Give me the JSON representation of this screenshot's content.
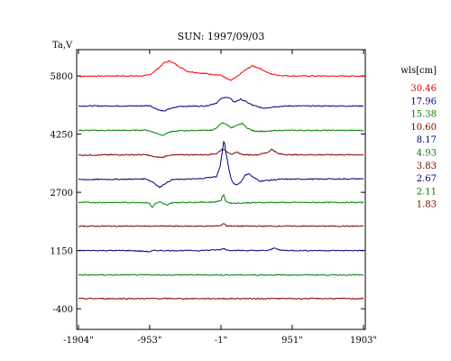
{
  "chart_data": {
    "type": "line",
    "title": "SUN: 1997/09/03",
    "ylabel": "Ta,V",
    "xlabel": "",
    "x_ticks": [
      "-1904\"",
      "-953\"",
      "-1\"",
      "951\"",
      "1903\""
    ],
    "x_tick_values": [
      -1904,
      -953,
      -1,
      951,
      1903
    ],
    "y_ticks": [
      "5800",
      "4250",
      "2700",
      "1150",
      "-400"
    ],
    "y_tick_values": [
      5800,
      4250,
      2700,
      1150,
      -400
    ],
    "xlim": [
      -1904,
      1903
    ],
    "ylim": [
      -950,
      6500
    ],
    "grid": false,
    "legend": {
      "title": "wls[cm]",
      "placement": "right",
      "entries": [
        "30.46",
        "17.96",
        "15.38",
        "10.60",
        "8.17",
        "4.93",
        "3.83",
        "2.67",
        "2.11",
        "1.83"
      ],
      "colors": [
        "#cc0000",
        "#000080",
        "#008000",
        "#800000",
        "#000080",
        "#008000",
        "#800000",
        "#000080",
        "#008000",
        "#800000"
      ]
    },
    "series": [
      {
        "wavelength": "30.46",
        "color": "#ff0000",
        "baseline": 5800,
        "points": [
          [
            -1904,
            5790
          ],
          [
            -1500,
            5800
          ],
          [
            -1050,
            5800
          ],
          [
            -950,
            5830
          ],
          [
            -850,
            5980
          ],
          [
            -760,
            6150
          ],
          [
            -680,
            6200
          ],
          [
            -600,
            6100
          ],
          [
            -450,
            5920
          ],
          [
            -250,
            5870
          ],
          [
            -100,
            5840
          ],
          [
            0,
            5820
          ],
          [
            80,
            5720
          ],
          [
            130,
            5680
          ],
          [
            200,
            5760
          ],
          [
            320,
            5950
          ],
          [
            420,
            6070
          ],
          [
            520,
            6000
          ],
          [
            650,
            5860
          ],
          [
            800,
            5810
          ],
          [
            1000,
            5800
          ],
          [
            1903,
            5795
          ]
        ]
      },
      {
        "wavelength": "17.96",
        "color": "#000080",
        "baseline": 5000,
        "points": [
          [
            -1904,
            5000
          ],
          [
            -1100,
            5000
          ],
          [
            -950,
            5010
          ],
          [
            -850,
            4910
          ],
          [
            -760,
            4860
          ],
          [
            -680,
            4930
          ],
          [
            -550,
            4990
          ],
          [
            -200,
            5000
          ],
          [
            -60,
            5080
          ],
          [
            0,
            5190
          ],
          [
            60,
            5240
          ],
          [
            120,
            5200
          ],
          [
            180,
            5100
          ],
          [
            260,
            5180
          ],
          [
            330,
            5120
          ],
          [
            420,
            5020
          ],
          [
            560,
            4940
          ],
          [
            720,
            4980
          ],
          [
            900,
            5000
          ],
          [
            1903,
            5000
          ]
        ]
      },
      {
        "wavelength": "15.38",
        "color": "#008000",
        "baseline": 4350,
        "points": [
          [
            -1904,
            4350
          ],
          [
            -1200,
            4350
          ],
          [
            -1000,
            4360
          ],
          [
            -900,
            4300
          ],
          [
            -780,
            4220
          ],
          [
            -700,
            4300
          ],
          [
            -560,
            4340
          ],
          [
            -300,
            4350
          ],
          [
            -100,
            4360
          ],
          [
            -30,
            4470
          ],
          [
            20,
            4560
          ],
          [
            80,
            4500
          ],
          [
            140,
            4420
          ],
          [
            220,
            4480
          ],
          [
            280,
            4540
          ],
          [
            340,
            4430
          ],
          [
            420,
            4340
          ],
          [
            600,
            4320
          ],
          [
            760,
            4350
          ],
          [
            1903,
            4350
          ]
        ]
      },
      {
        "wavelength": "10.60",
        "color": "#800000",
        "baseline": 3700,
        "points": [
          [
            -1904,
            3690
          ],
          [
            -1400,
            3700
          ],
          [
            -1000,
            3700
          ],
          [
            -880,
            3640
          ],
          [
            -780,
            3630
          ],
          [
            -700,
            3690
          ],
          [
            -500,
            3700
          ],
          [
            -200,
            3700
          ],
          [
            -60,
            3730
          ],
          [
            20,
            3860
          ],
          [
            80,
            3780
          ],
          [
            140,
            3720
          ],
          [
            220,
            3760
          ],
          [
            300,
            3700
          ],
          [
            480,
            3700
          ],
          [
            620,
            3760
          ],
          [
            680,
            3850
          ],
          [
            760,
            3730
          ],
          [
            900,
            3700
          ],
          [
            1903,
            3700
          ]
        ]
      },
      {
        "wavelength": "8.17",
        "color": "#000080",
        "baseline": 3050,
        "points": [
          [
            -1904,
            3040
          ],
          [
            -1200,
            3050
          ],
          [
            -1000,
            3060
          ],
          [
            -900,
            2960
          ],
          [
            -820,
            2830
          ],
          [
            -760,
            2920
          ],
          [
            -650,
            3040
          ],
          [
            -300,
            3060
          ],
          [
            -60,
            3120
          ],
          [
            -10,
            3400
          ],
          [
            20,
            3850
          ],
          [
            40,
            4100
          ],
          [
            70,
            3700
          ],
          [
            100,
            3380
          ],
          [
            130,
            3080
          ],
          [
            160,
            2960
          ],
          [
            200,
            2900
          ],
          [
            260,
            2960
          ],
          [
            320,
            3150
          ],
          [
            370,
            3200
          ],
          [
            430,
            3100
          ],
          [
            520,
            3000
          ],
          [
            800,
            3050
          ],
          [
            1903,
            3060
          ]
        ]
      },
      {
        "wavelength": "4.93",
        "color": "#008000",
        "baseline": 2430,
        "points": [
          [
            -1904,
            2430
          ],
          [
            -1100,
            2430
          ],
          [
            -960,
            2420
          ],
          [
            -920,
            2290
          ],
          [
            -880,
            2400
          ],
          [
            -820,
            2440
          ],
          [
            -720,
            2360
          ],
          [
            -680,
            2410
          ],
          [
            -600,
            2430
          ],
          [
            -100,
            2440
          ],
          [
            0,
            2480
          ],
          [
            30,
            2650
          ],
          [
            60,
            2490
          ],
          [
            90,
            2430
          ],
          [
            140,
            2410
          ],
          [
            600,
            2430
          ],
          [
            1903,
            2430
          ]
        ]
      },
      {
        "wavelength": "3.83",
        "color": "#800000",
        "baseline": 1800,
        "points": [
          [
            -1904,
            1800
          ],
          [
            -1000,
            1800
          ],
          [
            -100,
            1800
          ],
          [
            0,
            1820
          ],
          [
            40,
            1880
          ],
          [
            70,
            1810
          ],
          [
            200,
            1800
          ],
          [
            1903,
            1800
          ]
        ]
      },
      {
        "wavelength": "2.67",
        "color": "#000080",
        "baseline": 1150,
        "points": [
          [
            -1904,
            1150
          ],
          [
            -1200,
            1150
          ],
          [
            -950,
            1120
          ],
          [
            -900,
            1150
          ],
          [
            -300,
            1150
          ],
          [
            -20,
            1170
          ],
          [
            40,
            1210
          ],
          [
            80,
            1160
          ],
          [
            300,
            1150
          ],
          [
            600,
            1150
          ],
          [
            650,
            1160
          ],
          [
            720,
            1230
          ],
          [
            780,
            1160
          ],
          [
            900,
            1150
          ],
          [
            1903,
            1150
          ]
        ]
      },
      {
        "wavelength": "2.11",
        "color": "#008000",
        "baseline": 500,
        "points": [
          [
            -1904,
            500
          ],
          [
            1903,
            500
          ]
        ]
      },
      {
        "wavelength": "1.83",
        "color": "#800000",
        "baseline": -130,
        "points": [
          [
            -1904,
            -130
          ],
          [
            1903,
            -130
          ]
        ]
      }
    ]
  }
}
